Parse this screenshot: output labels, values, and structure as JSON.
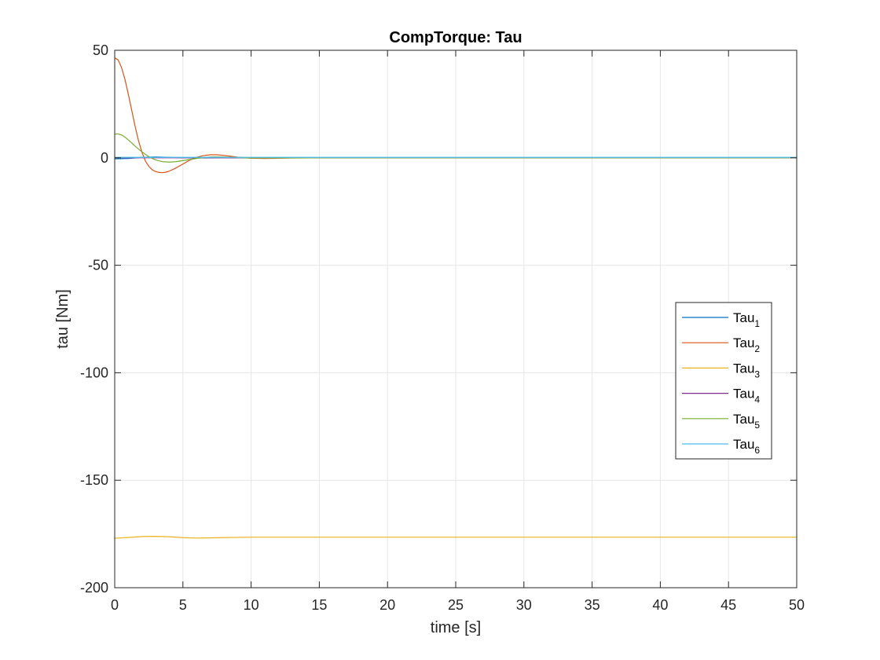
{
  "chart_data": {
    "type": "line",
    "title": "CompTorque: Tau",
    "xlabel": "time [s]",
    "ylabel": "tau [Nm]",
    "xlim": [
      0,
      50
    ],
    "ylim": [
      -200,
      50
    ],
    "xticks": [
      0,
      5,
      10,
      15,
      20,
      25,
      30,
      35,
      40,
      45,
      50
    ],
    "yticks": [
      50,
      0,
      -50,
      -100,
      -150,
      -200
    ],
    "xtick_labels": [
      "0",
      "5",
      "10",
      "15",
      "20",
      "25",
      "30",
      "35",
      "40",
      "45",
      "50"
    ],
    "ytick_labels": [
      "50",
      "0",
      "-50",
      "-100",
      "-150",
      "-200"
    ],
    "grid": true,
    "legend_position": "right",
    "series": [
      {
        "name": "Tau",
        "sub": "1",
        "color": "#0072BD",
        "x": [
          0,
          1,
          2,
          3,
          4,
          5,
          6,
          8,
          10,
          15,
          20,
          30,
          40,
          50
        ],
        "y": [
          -0.5,
          -0.3,
          0.2,
          0.4,
          0.2,
          0,
          -0.1,
          0,
          -0.1,
          0,
          0,
          0,
          0,
          0
        ]
      },
      {
        "name": "Tau",
        "sub": "2",
        "color": "#D95319",
        "x": [
          0,
          0.25,
          0.5,
          0.75,
          1,
          1.25,
          1.5,
          1.75,
          2,
          2.25,
          2.5,
          2.75,
          3,
          3.25,
          3.5,
          3.75,
          4,
          4.25,
          4.5,
          5,
          5.5,
          6,
          6.5,
          7,
          7.5,
          8,
          8.5,
          9,
          10,
          11,
          12,
          13,
          15,
          20,
          30,
          40,
          50
        ],
        "y": [
          46.5,
          45.5,
          42,
          36.5,
          29.5,
          22,
          14.5,
          7.8,
          2.5,
          -1.5,
          -4,
          -5.6,
          -6.4,
          -6.8,
          -6.9,
          -6.7,
          -6.2,
          -5.5,
          -4.7,
          -2.9,
          -1.1,
          0.2,
          1,
          1.4,
          1.4,
          1.1,
          0.7,
          0.3,
          -0.2,
          -0.3,
          -0.2,
          -0.1,
          0,
          0,
          0,
          0,
          0
        ]
      },
      {
        "name": "Tau",
        "sub": "3",
        "color": "#EDB120",
        "x": [
          0,
          1,
          2,
          3,
          4,
          5,
          6,
          8,
          10,
          15,
          20,
          30,
          40,
          50
        ],
        "y": [
          -177,
          -176.6,
          -176.2,
          -176.1,
          -176.3,
          -176.7,
          -176.9,
          -176.7,
          -176.5,
          -176.5,
          -176.5,
          -176.5,
          -176.5,
          -176.5
        ]
      },
      {
        "name": "Tau",
        "sub": "4",
        "color": "#7E2F8E",
        "x": [
          0,
          5,
          10,
          20,
          30,
          40,
          50
        ],
        "y": [
          0,
          0,
          0,
          0,
          0,
          0,
          0
        ]
      },
      {
        "name": "Tau",
        "sub": "5",
        "color": "#77AC30",
        "x": [
          0,
          0.25,
          0.5,
          0.75,
          1,
          1.5,
          2,
          2.5,
          3,
          3.5,
          4,
          4.5,
          5,
          5.5,
          6,
          6.5,
          7,
          7.5,
          8,
          9,
          10,
          12,
          15,
          20,
          30,
          40,
          50
        ],
        "y": [
          11,
          11.1,
          10.6,
          9.6,
          8.3,
          5.4,
          2.7,
          0.5,
          -1,
          -1.8,
          -2,
          -1.8,
          -1.3,
          -0.8,
          -0.3,
          0.1,
          0.35,
          0.4,
          0.35,
          0.1,
          -0.1,
          -0.1,
          0,
          0,
          0,
          0,
          0
        ]
      },
      {
        "name": "Tau",
        "sub": "6",
        "color": "#4DBEEE",
        "x": [
          0,
          5,
          10,
          20,
          30,
          40,
          50
        ],
        "y": [
          0.2,
          0.2,
          0.2,
          0.2,
          0.2,
          0.2,
          0.2
        ]
      }
    ]
  }
}
